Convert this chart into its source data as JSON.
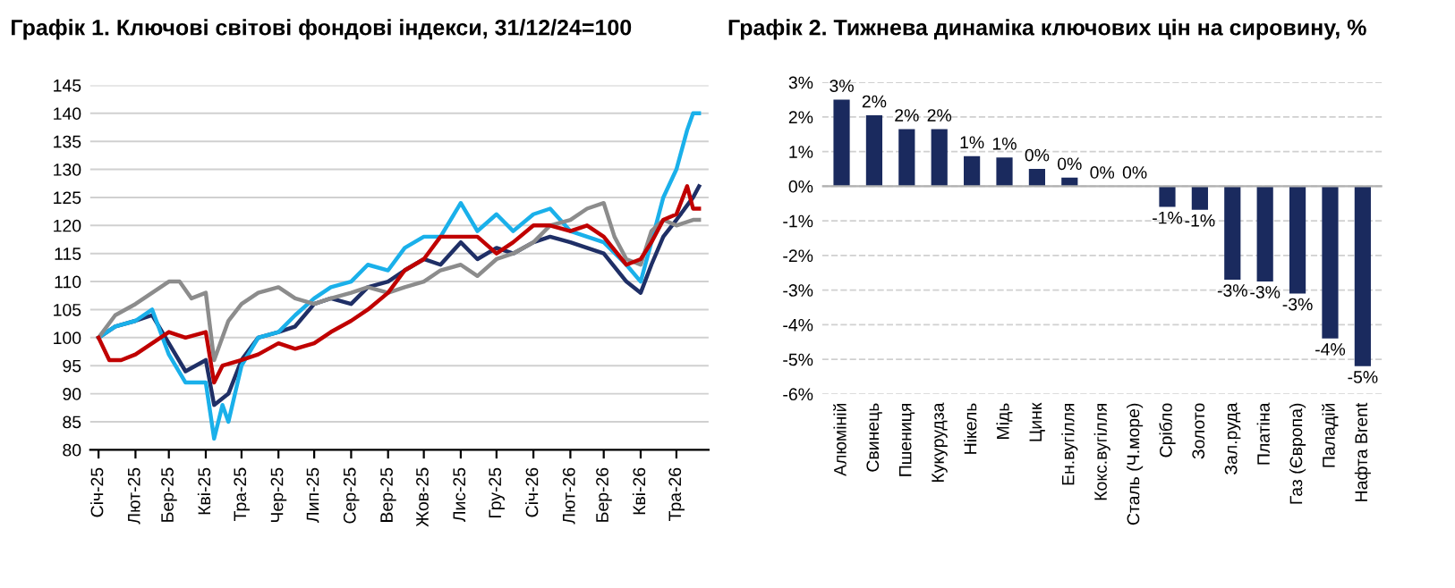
{
  "chart_data": [
    {
      "type": "line",
      "title": "Графік 1. Ключові світові фондові індекси, 31/12/24=100",
      "series": [
        {
          "color": "#1f2f66",
          "x": [
            "2025-01-01",
            "2025-01-15",
            "2025-02-01",
            "2025-02-15",
            "2025-03-01",
            "2025-03-15",
            "2025-04-01",
            "2025-04-08",
            "2025-04-20",
            "2025-05-01",
            "2025-05-15",
            "2025-06-01",
            "2025-06-15",
            "2025-07-01",
            "2025-07-15",
            "2025-08-01",
            "2025-08-15",
            "2025-09-01",
            "2025-09-15",
            "2025-10-01",
            "2025-10-15",
            "2025-11-01",
            "2025-11-15",
            "2025-12-01",
            "2025-12-15",
            "2026-01-01",
            "2026-01-15",
            "2026-02-01",
            "2026-02-15",
            "2026-03-01",
            "2026-03-20",
            "2026-04-01",
            "2026-04-10",
            "2026-04-20",
            "2026-05-01",
            "2026-05-15",
            "2026-05-20"
          ],
          "values": [
            100,
            102,
            103,
            104,
            99,
            94,
            96,
            88,
            90,
            96,
            100,
            101,
            102,
            106,
            107,
            106,
            109,
            110,
            112,
            114,
            113,
            117,
            114,
            116,
            115,
            117,
            118,
            117,
            116,
            115,
            110,
            108,
            113,
            118,
            121,
            125,
            127
          ]
        },
        {
          "color": "#1ab0ea",
          "x": [
            "2025-01-01",
            "2025-01-15",
            "2025-02-01",
            "2025-02-15",
            "2025-03-01",
            "2025-03-15",
            "2025-04-01",
            "2025-04-08",
            "2025-04-15",
            "2025-04-20",
            "2025-05-01",
            "2025-05-15",
            "2025-06-01",
            "2025-06-15",
            "2025-07-01",
            "2025-07-15",
            "2025-08-01",
            "2025-08-15",
            "2025-09-01",
            "2025-09-15",
            "2025-10-01",
            "2025-10-15",
            "2025-11-01",
            "2025-11-15",
            "2025-12-01",
            "2025-12-15",
            "2026-01-01",
            "2026-01-15",
            "2026-02-01",
            "2026-02-15",
            "2026-03-01",
            "2026-03-20",
            "2026-04-01",
            "2026-04-10",
            "2026-04-20",
            "2026-05-01",
            "2026-05-10",
            "2026-05-15",
            "2026-05-20"
          ],
          "values": [
            100,
            102,
            103,
            105,
            97,
            92,
            92,
            82,
            88,
            85,
            95,
            100,
            101,
            104,
            107,
            109,
            110,
            113,
            112,
            116,
            118,
            118,
            124,
            119,
            122,
            119,
            122,
            123,
            119,
            118,
            117,
            113,
            110,
            117,
            125,
            130,
            137,
            140,
            140
          ]
        },
        {
          "color": "#8c8c8c",
          "x": [
            "2025-01-01",
            "2025-01-15",
            "2025-02-01",
            "2025-02-15",
            "2025-03-01",
            "2025-03-10",
            "2025-03-20",
            "2025-04-01",
            "2025-04-08",
            "2025-04-20",
            "2025-05-01",
            "2025-05-15",
            "2025-06-01",
            "2025-06-15",
            "2025-07-01",
            "2025-07-15",
            "2025-08-01",
            "2025-08-15",
            "2025-09-01",
            "2025-09-15",
            "2025-10-01",
            "2025-10-15",
            "2025-11-01",
            "2025-11-15",
            "2025-12-01",
            "2025-12-15",
            "2026-01-01",
            "2026-01-15",
            "2026-02-01",
            "2026-02-15",
            "2026-03-01",
            "2026-03-10",
            "2026-03-20",
            "2026-04-01",
            "2026-04-10",
            "2026-04-20",
            "2026-05-01",
            "2026-05-15",
            "2026-05-20"
          ],
          "values": [
            100,
            104,
            106,
            108,
            110,
            110,
            107,
            108,
            96,
            103,
            106,
            108,
            109,
            107,
            106,
            107,
            108,
            109,
            108,
            109,
            110,
            112,
            113,
            111,
            114,
            115,
            117,
            120,
            121,
            123,
            124,
            118,
            114,
            113,
            119,
            121,
            120,
            121,
            121
          ]
        },
        {
          "color": "#c00000",
          "x": [
            "2025-01-01",
            "2025-01-10",
            "2025-01-20",
            "2025-02-01",
            "2025-02-15",
            "2025-03-01",
            "2025-03-15",
            "2025-04-01",
            "2025-04-08",
            "2025-04-15",
            "2025-05-01",
            "2025-05-15",
            "2025-06-01",
            "2025-06-15",
            "2025-07-01",
            "2025-07-15",
            "2025-08-01",
            "2025-08-15",
            "2025-09-01",
            "2025-09-15",
            "2025-10-01",
            "2025-10-15",
            "2025-11-01",
            "2025-11-15",
            "2025-12-01",
            "2025-12-15",
            "2026-01-01",
            "2026-01-15",
            "2026-02-01",
            "2026-02-15",
            "2026-03-01",
            "2026-03-20",
            "2026-04-01",
            "2026-04-10",
            "2026-04-20",
            "2026-05-01",
            "2026-05-10",
            "2026-05-15",
            "2026-05-20"
          ],
          "values": [
            100,
            96,
            96,
            97,
            99,
            101,
            100,
            101,
            92,
            95,
            96,
            97,
            99,
            98,
            99,
            101,
            103,
            105,
            108,
            112,
            114,
            118,
            118,
            118,
            115,
            117,
            120,
            120,
            119,
            120,
            118,
            113,
            114,
            117,
            121,
            122,
            127,
            123,
            123
          ]
        }
      ],
      "xlim": [
        "2024-12-25",
        "2026-05-28"
      ],
      "xticks": [
        {
          "value": "2025-01-01",
          "label": "Січ-25"
        },
        {
          "value": "2025-02-01",
          "label": "Лют-25"
        },
        {
          "value": "2025-03-01",
          "label": "Бер-25"
        },
        {
          "value": "2025-04-01",
          "label": "Кві-25"
        },
        {
          "value": "2025-05-01",
          "label": "Тра-25"
        },
        {
          "value": "2025-06-01",
          "label": "Чер-25"
        },
        {
          "value": "2025-07-01",
          "label": "Лип-25"
        },
        {
          "value": "2025-08-01",
          "label": "Сер-25"
        },
        {
          "value": "2025-09-01",
          "label": "Вер-25"
        },
        {
          "value": "2025-10-01",
          "label": "Жов-25"
        },
        {
          "value": "2025-11-01",
          "label": "Лис-25"
        },
        {
          "value": "2025-12-01",
          "label": "Гру-25"
        },
        {
          "value": "2026-01-01",
          "label": "Січ-26"
        },
        {
          "value": "2026-02-01",
          "label": "Лют-26"
        },
        {
          "value": "2026-03-01",
          "label": "Бер-26"
        },
        {
          "value": "2026-04-01",
          "label": "Кві-26"
        },
        {
          "value": "2026-05-01",
          "label": "Тра-26"
        }
      ],
      "ylim": [
        80,
        145
      ],
      "yticks": [
        80,
        85,
        90,
        95,
        100,
        105,
        110,
        115,
        120,
        125,
        130,
        135,
        140,
        145
      ],
      "grid": "y",
      "line_style": "solid",
      "marker": "none"
    },
    {
      "type": "bar",
      "title": "Графік 2. Тижнева динаміка ключових цін на сировину, %",
      "categories": [
        "Алюміній",
        "Свинець",
        "Пшениця",
        "Кукурудза",
        "Нікель",
        "Мідь",
        "Цинк",
        "Ен.вугілля",
        "Кокс.вугілля",
        "Сталь (Ч.море)",
        "Срібло",
        "Золото",
        "Зал.руда",
        "Платіна",
        "Газ (Європа)",
        "Паладій",
        "Нафта Brent"
      ],
      "values": [
        2.5,
        2.05,
        1.65,
        1.65,
        0.87,
        0.83,
        0.5,
        0.25,
        0,
        0,
        -0.6,
        -0.68,
        -2.7,
        -2.75,
        -3.1,
        -4.4,
        -5.2
      ],
      "value_labels": [
        "3%",
        "2%",
        "2%",
        "2%",
        "1%",
        "1%",
        "0%",
        "0%",
        "0%",
        "0%",
        "-1%",
        "-1%",
        "-3%",
        "-3%",
        "-3%",
        "-4%",
        "-5%"
      ],
      "color": "#1a2a5e",
      "ylim": [
        -6,
        3
      ],
      "yticks": [
        {
          "value": 3,
          "label": "3%"
        },
        {
          "value": 2,
          "label": "2%"
        },
        {
          "value": 1,
          "label": "1%"
        },
        {
          "value": 0,
          "label": "0%"
        },
        {
          "value": -1,
          "label": "-1%"
        },
        {
          "value": -2,
          "label": "-2%"
        },
        {
          "value": -3,
          "label": "-3%"
        },
        {
          "value": -4,
          "label": "-4%"
        },
        {
          "value": -5,
          "label": "-5%"
        },
        {
          "value": -6,
          "label": "-6%"
        }
      ],
      "grid": "y"
    }
  ]
}
